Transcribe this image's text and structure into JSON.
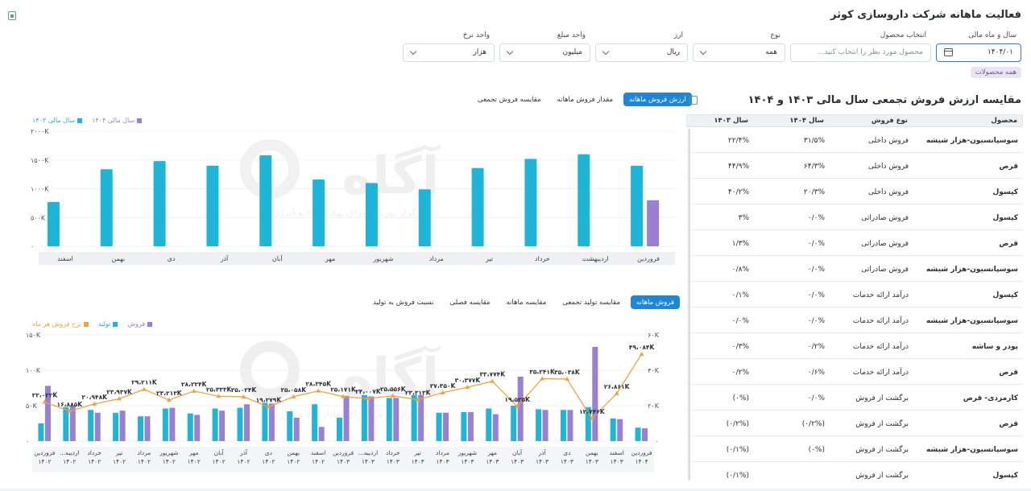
{
  "page": {
    "title": "فعالیت ماهانه شرکت داروسازی کوثر",
    "all_products_chip": "همه محصولات"
  },
  "filters": [
    {
      "label": "سال و ماه مالی",
      "value": "۱۴۰۴/۰۱",
      "icon": "calendar-icon"
    },
    {
      "label": "انتخاب محصول",
      "placeholder": "محصول مورد نظر را انتخاب کنید..."
    },
    {
      "label": "نوع",
      "value": "همه"
    },
    {
      "label": "ارز",
      "value": "ریال"
    },
    {
      "label": "واحد مبلغ",
      "value": "میلیون"
    },
    {
      "label": "واحد نرخ",
      "value": "هزار"
    }
  ],
  "top_chart": {
    "tabs": [
      "ارزش فروش ماهانه",
      "مقدار فروش ماهانه",
      "مقایسه فروش تجمعی"
    ],
    "active_tab": 0,
    "watermark_text": "کارگزار بورس اوراق بهادار کالا و انرژی"
  },
  "bottom_chart": {
    "tabs": [
      "فروش ماهانه",
      "مقایسه تولید تجمعی",
      "مقایسه ماهانه",
      "مقایسه فصلی",
      "نسبت فروش به تولید"
    ],
    "active_tab": 0
  },
  "table": {
    "title": "مقایسه ارزش فروش تجمعی سال مالی ۱۴۰۳ و ۱۴۰۴",
    "columns": [
      "محصول",
      "نوع فروش",
      "سال ۱۴۰۴",
      "سال ۱۴۰۳"
    ],
    "rows": [
      [
        "سوسپانسیون-هزار شیشه",
        "فروش داخلی",
        "۳۱/۵%",
        "۲۲/۴%"
      ],
      [
        "قرص",
        "فروش داخلی",
        "۶۴/۳%",
        "۴۴/۹%"
      ],
      [
        "کپسول",
        "فروش داخلی",
        "۲۰/۳%",
        "۴۰/۲%"
      ],
      [
        "کپسول",
        "فروش صادراتی",
        "۰/۰%",
        "۳%"
      ],
      [
        "قرص",
        "فروش صادراتی",
        "۰/۰%",
        "۱/۳%"
      ],
      [
        "سوسپانسیون-هزار شیشه",
        "فروش صادراتی",
        "۰/۰%",
        "۰/۸%"
      ],
      [
        "کپسول",
        "درآمد ارائه خدمات",
        "۰/۰%",
        "۰/۱%"
      ],
      [
        "سوسپانسیون-هزار شیشه",
        "درآمد ارائه خدمات",
        "۰/۰%",
        "۰/۰%"
      ],
      [
        "پودر و ساشه",
        "درآمد ارائه خدمات",
        "۰/۲%",
        "۰/۳%"
      ],
      [
        "قرص",
        "درآمد ارائه خدمات",
        "۰/۶%",
        "۰/۲%"
      ],
      [
        "کارمزدی- قرص",
        "برگشت از فروش",
        "۰/۰%",
        "(۰%)"
      ],
      [
        "قرص",
        "برگشت از فروش",
        "(۰/۲%)",
        "(۰/۲%)"
      ],
      [
        "سوسپانسیون-هزار شیشه",
        "برگشت از فروش",
        "(۰%)",
        "(۰/۱%)"
      ],
      [
        "کپسول",
        "برگشت از فروش",
        "",
        "(۰/۱%)"
      ]
    ]
  },
  "chart_data": [
    {
      "type": "bar",
      "title": "",
      "categories": [
        "فروردین",
        "اردیبهشت",
        "خرداد",
        "تیر",
        "مرداد",
        "شهریور",
        "مهر",
        "آبان",
        "آذر",
        "دی",
        "بهمن",
        "اسفند"
      ],
      "series": [
        {
          "name": "سال مالی ۱۴۰۳",
          "color": "#1fb5d8",
          "values": [
            1400,
            1600,
            1520,
            1360,
            990,
            1100,
            1160,
            1580,
            1400,
            1480,
            1340,
            770
          ]
        },
        {
          "name": "سال مالی ۱۴۰۴",
          "color": "#9b7fd4",
          "values": [
            800,
            null,
            null,
            null,
            null,
            null,
            null,
            null,
            null,
            null,
            null,
            null
          ]
        }
      ],
      "yticks": [
        "۰",
        "۵۰۰K",
        "۱۰۰۰K",
        "۱۵۰۰K",
        "۲۰۰۰K"
      ],
      "ylim": [
        0,
        2000
      ]
    },
    {
      "type": "bar",
      "title": "",
      "categories": [
        "فروردین ۱۴۰۲",
        "اردیبه... ۱۴۰۲",
        "خرداد ۱۴۰۲",
        "تیر ۱۴۰۲",
        "مرداد ۱۴۰۲",
        "شهریور ۱۴۰۲",
        "مهر ۱۴۰۲",
        "آبان ۱۴۰۲",
        "آذر ۱۴۰۲",
        "دی ۱۴۰۲",
        "بهمن ۱۴۰۲",
        "اسفند ۱۴۰۲",
        "فروردین ۱۴۰۳",
        "اردیبه... ۱۴۰۳",
        "خرداد ۱۴۰۳",
        "تیر ۱۴۰۳",
        "مرداد ۱۴۰۳",
        "شهریور ۱۴۰۳",
        "مهر ۱۴۰۳",
        "آبان ۱۴۰۳",
        "آذر ۱۴۰۳",
        "دی ۱۴۰۳",
        "بهمن ۱۴۰۳",
        "اسفند ۱۴۰۳",
        "فروردین ۱۴۰۴"
      ],
      "series": [
        {
          "name": "فروش",
          "color": "#9b7fd4",
          "axis": "left",
          "values": [
            78,
            50,
            40,
            43,
            35,
            47,
            37,
            43,
            52,
            53,
            33,
            20,
            64,
            63,
            61,
            65,
            40,
            41,
            38,
            91,
            44,
            44,
            133,
            31,
            18
          ]
        },
        {
          "name": "تولید",
          "color": "#1fb5d8",
          "axis": "left",
          "values": [
            25,
            48,
            44,
            40,
            35,
            46,
            39,
            46,
            47,
            54,
            42,
            52,
            33,
            65,
            61,
            65,
            40,
            41,
            46,
            50,
            45,
            44,
            48,
            32,
            19
          ]
        },
        {
          "name": "نرخ فروش هر ماه",
          "color": "#f0a33a",
          "axis": "right",
          "type": "line",
          "values": [
            22.022,
            16.885,
            20.948,
            23.937,
            29.211,
            23.213,
            28.224,
            25.333,
            25.024,
            19.279,
            25.058,
            28.345,
            25.171,
            24.007,
            25.556,
            23.313,
            27.35,
            30.377,
            33.774,
            19.525,
            35.241,
            35.038,
            12.746,
            26.861,
            49.084
          ],
          "labels": [
            "۲۲،۰۲۲K",
            "۱۶،۸۸۵K",
            "۲۰،۹۴۸K",
            "۲۳،۹۳۷K",
            "۲۹،۲۱۱K",
            "۲۳،۲۱۳K",
            "۲۸،۲۲۴K",
            "۲۵،۳۳۳K",
            "۲۵،۰۲۴K",
            "۱۹،۲۷۹K",
            "۲۵،۰۵۸K",
            "۲۸،۳۴۵K",
            "۲۵،۱۷۱K",
            "۲۴،۰۰۷K",
            "۲۵،۵۵۶K",
            "۲۳،۳۱۳K",
            "۲۷،۳۵۰K",
            "۳۰،۳۷۷K",
            "۳۳،۷۷۴K",
            "۱۹،۵۲۵K",
            "۳۵،۲۴۱K",
            "۳۵،۰۳۸K",
            "۱۲،۷۴۶K",
            "۲۶،۸۶۱K",
            "۴۹،۰۸۴K"
          ]
        }
      ],
      "yticks_left": [
        "۰",
        "۵۰K",
        "۱۰۰K",
        "۱۵۰K"
      ],
      "yticks_right": [
        "۰",
        "۲۰K",
        "۴۰K",
        "۶۰K"
      ],
      "ylim_left": [
        0,
        150
      ],
      "ylim_right": [
        0,
        60
      ]
    }
  ]
}
